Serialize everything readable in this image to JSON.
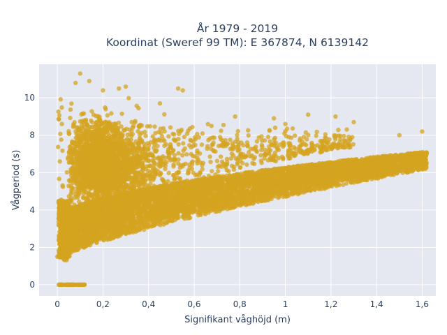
{
  "chart_data": {
    "type": "scatter",
    "title_line1": "År 1979 - 2019",
    "title_line2": "Koordinat (Sweref 99 TM): E 367874, N 6139142",
    "xlabel": "Signifikant våghöjd (m)",
    "ylabel": "Vågperiod (s)",
    "xlim": [
      -0.08,
      1.66
    ],
    "ylim": [
      -0.6,
      11.8
    ],
    "xticks": [
      0,
      0.2,
      0.4,
      0.6,
      0.8,
      1,
      1.2,
      1.4,
      1.6
    ],
    "xtick_labels": [
      "0",
      "0,2",
      "0,4",
      "0,6",
      "0,8",
      "1",
      "1,2",
      "1,4",
      "1,6"
    ],
    "yticks": [
      0,
      2,
      4,
      6,
      8,
      10
    ],
    "ytick_labels": [
      "0",
      "2",
      "4",
      "6",
      "8",
      "10"
    ],
    "grid": true,
    "colors": {
      "background": "#e5e8f1",
      "grid": "#ffffff",
      "marker": "#d4a420"
    },
    "data_summary": {
      "x_range": [
        0,
        1.62
      ],
      "y_range": [
        0,
        11.3
      ],
      "description_points": [
        {
          "x": 0.02,
          "y": 0
        },
        {
          "x": 0.12,
          "y": 0
        },
        {
          "x": 0.1,
          "y": 11.3
        },
        {
          "x": 0.05,
          "y": 1.5
        },
        {
          "x": 0.3,
          "y": 1.8
        },
        {
          "x": 0.6,
          "y": 3.0
        },
        {
          "x": 0.6,
          "y": 6.0
        },
        {
          "x": 1.0,
          "y": 4.6
        },
        {
          "x": 1.0,
          "y": 6.2
        },
        {
          "x": 1.6,
          "y": 6.5
        },
        {
          "x": 1.6,
          "y": 8.2
        }
      ]
    },
    "point_count_estimate": 12000
  }
}
